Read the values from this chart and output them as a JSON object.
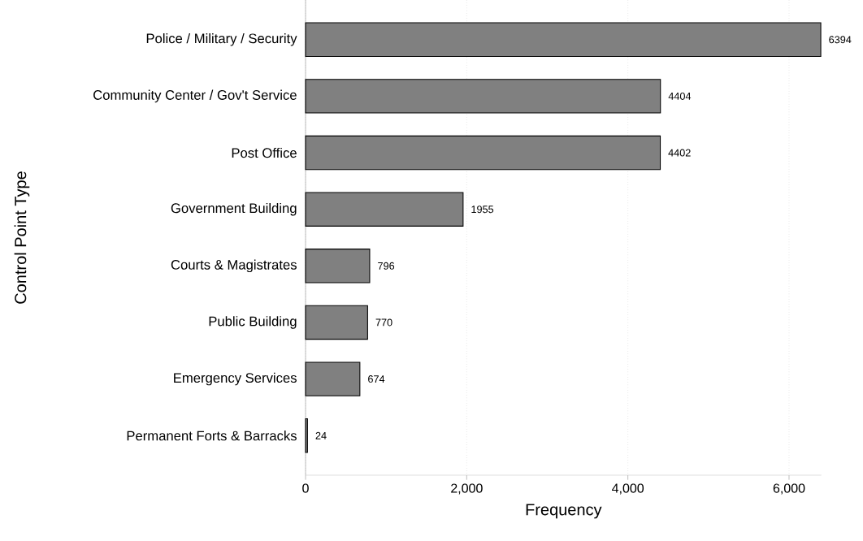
{
  "chart_data": {
    "type": "bar",
    "orientation": "horizontal",
    "xlabel": "Frequency",
    "ylabel": "Control Point Type",
    "categories": [
      "Police / Military / Security",
      "Community Center / Gov't Service",
      "Post Office",
      "Government Building",
      "Courts & Magistrates",
      "Public Building",
      "Emergency Services",
      "Permanent Forts & Barracks"
    ],
    "values": [
      6394,
      4404,
      4402,
      1955,
      796,
      770,
      674,
      24
    ],
    "color": "#808080",
    "data_labels": true,
    "grid": "x",
    "xlim": [
      0,
      6400
    ],
    "xticks": [
      0,
      {
        "value": 2000,
        "label": "2,000"
      },
      {
        "value": 4000,
        "label": "4,000"
      },
      {
        "value": 6000,
        "label": "6,000"
      }
    ]
  }
}
